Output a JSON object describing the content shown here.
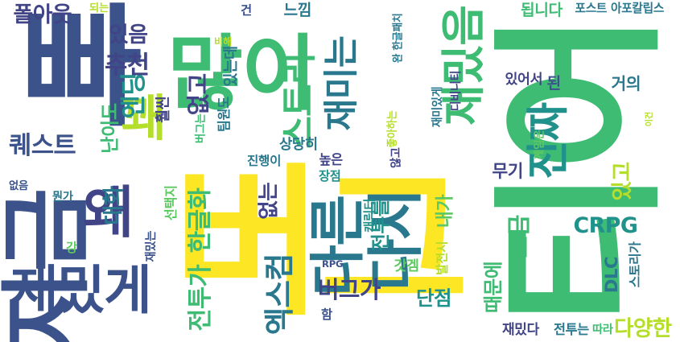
{
  "palette": {
    "navy": "#3b528b",
    "indigo": "#414487",
    "teal": "#2a788e",
    "cyan": "#21918c",
    "green": "#3fbc73",
    "lime": "#5ec962",
    "yellow": "#fde725",
    "olive": "#b5de2b",
    "purple": "#482878"
  },
  "words": [
    {
      "text": "빠",
      "color": "navy"
    },
    {
      "text": "많이",
      "color": "green"
    },
    {
      "text": "버그",
      "color": "yellow"
    },
    {
      "text": "지금",
      "color": "navy"
    },
    {
      "text": "티어",
      "color": "green"
    },
    {
      "text": "다시",
      "color": "teal"
    },
    {
      "text": "다른",
      "color": "teal"
    },
    {
      "text": "재밌음",
      "color": "green"
    },
    {
      "text": "재밌게",
      "color": "navy"
    },
    {
      "text": "진짜",
      "color": "cyan"
    },
    {
      "text": "왜",
      "color": "indigo"
    },
    {
      "text": "꽤",
      "color": "olive"
    },
    {
      "text": "재미는",
      "color": "teal"
    },
    {
      "text": "스토리",
      "color": "green"
    },
    {
      "text": "CRPG",
      "color": "cyan"
    },
    {
      "text": "엑스컴",
      "color": "teal"
    },
    {
      "text": "퀘스트",
      "color": "navy"
    },
    {
      "text": "폴아웃",
      "color": "indigo"
    },
    {
      "text": "있음",
      "color": "indigo"
    },
    {
      "text": "추천",
      "color": "indigo"
    },
    {
      "text": "엔딩",
      "color": "cyan"
    },
    {
      "text": "난이도",
      "color": "green"
    },
    {
      "text": "없고",
      "color": "indigo"
    },
    {
      "text": "버그가",
      "color": "indigo"
    },
    {
      "text": "한글화",
      "color": "green"
    },
    {
      "text": "전투가",
      "color": "green"
    },
    {
      "text": "대화",
      "color": "teal"
    },
    {
      "text": "조금",
      "color": "green"
    },
    {
      "text": "DLC",
      "color": "teal"
    },
    {
      "text": "다양한",
      "color": "olive"
    },
    {
      "text": "때문에",
      "color": "green"
    },
    {
      "text": "없는",
      "color": "indigo"
    },
    {
      "text": "단점",
      "color": "cyan"
    },
    {
      "text": "전투를",
      "color": "cyan"
    },
    {
      "text": "있고",
      "color": "olive"
    },
    {
      "text": "거의",
      "color": "teal"
    },
    {
      "text": "무기",
      "color": "indigo"
    },
    {
      "text": "게임은",
      "color": "lime"
    },
    {
      "text": "스토리가",
      "color": "teal"
    },
    {
      "text": "갓겜",
      "color": "lime"
    },
    {
      "text": "RPG",
      "color": "navy"
    },
    {
      "text": "내가",
      "color": "lime"
    },
    {
      "text": "상당히",
      "color": "teal"
    },
    {
      "text": "진행이",
      "color": "teal"
    },
    {
      "text": "높은",
      "color": "indigo"
    },
    {
      "text": "장점",
      "color": "cyan"
    },
    {
      "text": "느낌",
      "color": "teal"
    },
    {
      "text": "됩니다",
      "color": "green"
    },
    {
      "text": "포스트 아포칼립스",
      "color": "teal"
    },
    {
      "text": "있어서",
      "color": "indigo"
    },
    {
      "text": "된",
      "color": "navy"
    },
    {
      "text": "이건",
      "color": "olive"
    },
    {
      "text": "재밌다",
      "color": "indigo"
    },
    {
      "text": "전투는",
      "color": "teal"
    },
    {
      "text": "따라",
      "color": "green"
    },
    {
      "text": "되는",
      "color": "olive"
    },
    {
      "text": "비해",
      "color": "olive"
    },
    {
      "text": "건",
      "color": "navy"
    },
    {
      "text": "있는데",
      "color": "teal"
    },
    {
      "text": "팀원도",
      "color": "teal"
    },
    {
      "text": "훨씬",
      "color": "indigo"
    },
    {
      "text": "버그는",
      "color": "green"
    },
    {
      "text": "없음",
      "color": "navy"
    },
    {
      "text": "뭔가",
      "color": "teal"
    },
    {
      "text": "선택지",
      "color": "lime"
    },
    {
      "text": "재밌는",
      "color": "navy"
    },
    {
      "text": "강",
      "color": "lime"
    },
    {
      "text": "함",
      "color": "navy"
    },
    {
      "text": "캐릭터",
      "color": "cyan"
    },
    {
      "text": "발전시",
      "color": "olive"
    },
    {
      "text": "완 한글패치",
      "color": "teal"
    },
    {
      "text": "디비니티",
      "color": "indigo"
    },
    {
      "text": "재미있게",
      "color": "teal"
    },
    {
      "text": "좋아하는",
      "color": "olive"
    },
    {
      "text": "않고",
      "color": "indigo"
    }
  ]
}
